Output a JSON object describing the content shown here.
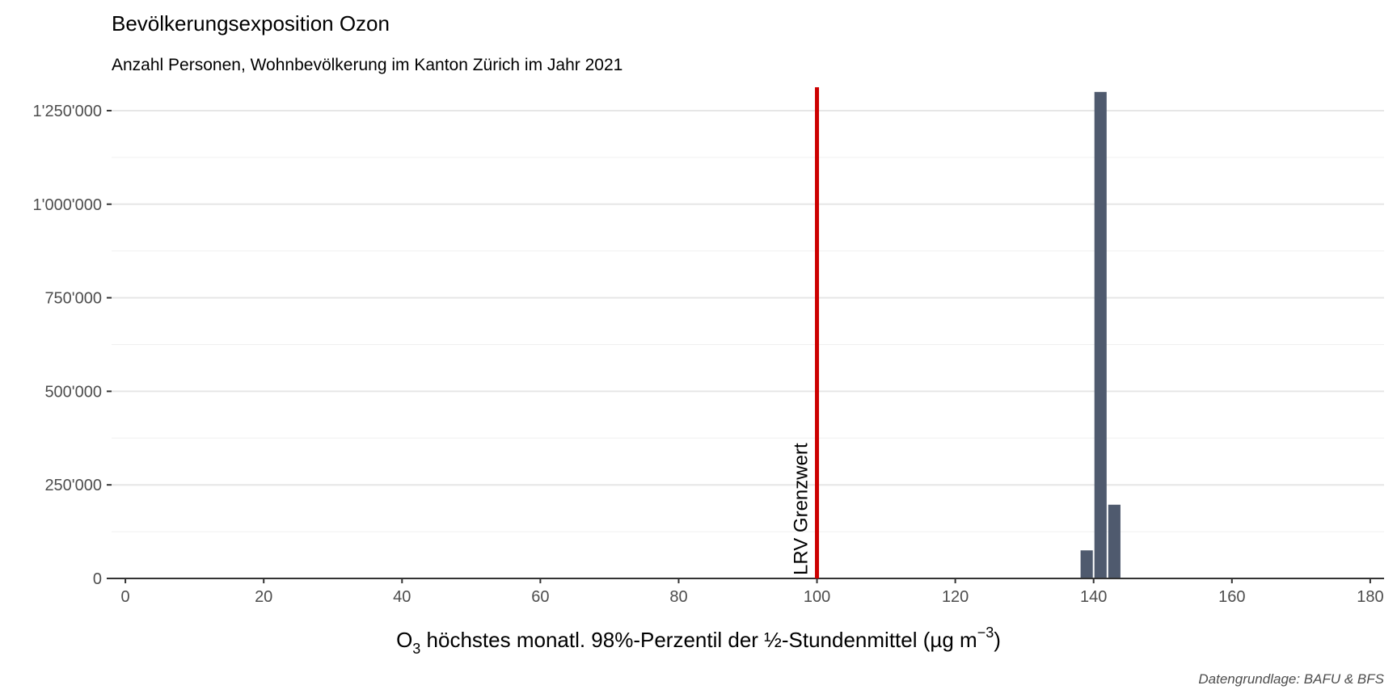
{
  "chart_data": {
    "type": "bar",
    "title": "Bevölkerungsexposition Ozon",
    "subtitle": "Anzahl Personen, Wohnbevölkerung im Kanton Zürich im Jahr 2021",
    "xlabel": "O",
    "xlabel_sub": "3",
    "xlabel_rest": " höchstes monatl. 98%-Perzentil der ½-Stundenmittel (µg m",
    "xlabel_sup": "−3",
    "xlabel_end": ")",
    "caption": "Datengrundlage: BAFU & BFS",
    "xlim": [
      -2,
      182
    ],
    "ylim": [
      0,
      1312500
    ],
    "x_ticks": [
      0,
      20,
      40,
      60,
      80,
      100,
      120,
      140,
      160,
      180
    ],
    "x_tick_labels": [
      "0",
      "20",
      "40",
      "60",
      "80",
      "100",
      "120",
      "140",
      "160",
      "180"
    ],
    "y_ticks": [
      0,
      250000,
      500000,
      750000,
      1000000,
      1250000
    ],
    "y_tick_labels": [
      "0",
      "250'000",
      "500'000",
      "750'000",
      "1'000'000",
      "1'250'000"
    ],
    "y_minor_ticks": [
      125000,
      375000,
      625000,
      875000,
      1125000
    ],
    "grid": true,
    "bin_width": 2,
    "bars": [
      {
        "x": 137,
        "value": 2000
      },
      {
        "x": 139,
        "value": 75000
      },
      {
        "x": 141,
        "value": 1300000
      },
      {
        "x": 143,
        "value": 197000
      }
    ],
    "bar_color": "#4f5a6e",
    "reference_line": {
      "x": 100,
      "label": "LRV Grenzwert",
      "color": "#cc0000"
    }
  }
}
